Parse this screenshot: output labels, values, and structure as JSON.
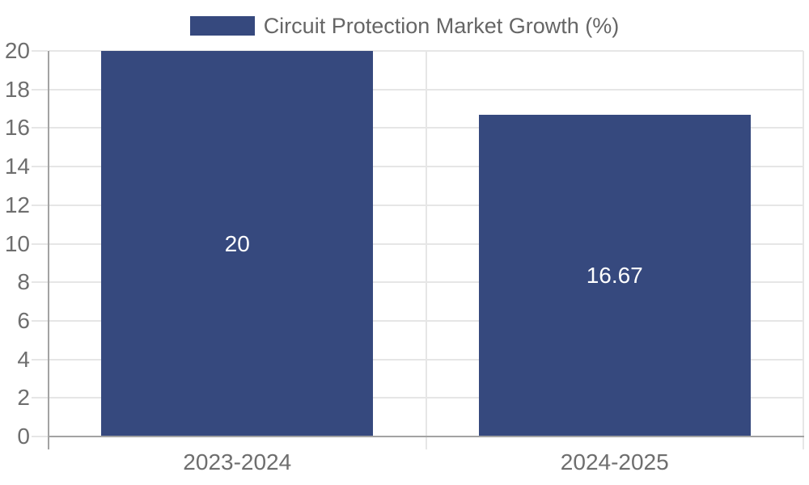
{
  "chart_data": {
    "type": "bar",
    "title": "Circuit Protection Market Growth (%)",
    "legend": {
      "label": "Circuit Protection Market Growth (%)",
      "position": "top-center"
    },
    "categories": [
      "2023-2024",
      "2024-2025"
    ],
    "values": [
      20,
      16.67
    ],
    "value_labels": [
      "20",
      "16.67"
    ],
    "xlabel": "",
    "ylabel": "",
    "ylim": [
      0,
      20
    ],
    "ytick_step": 2,
    "yticks": [
      "0",
      "2",
      "4",
      "6",
      "8",
      "10",
      "12",
      "14",
      "16",
      "18",
      "20"
    ],
    "grid": true,
    "colors": {
      "bar": "#36497E",
      "grid": "#e6e6e6",
      "axis": "#a3a3a3",
      "tick_text": "#6e6e6e",
      "value_text": "#ffffff",
      "legend_text": "#666666",
      "background": "#ffffff"
    }
  }
}
